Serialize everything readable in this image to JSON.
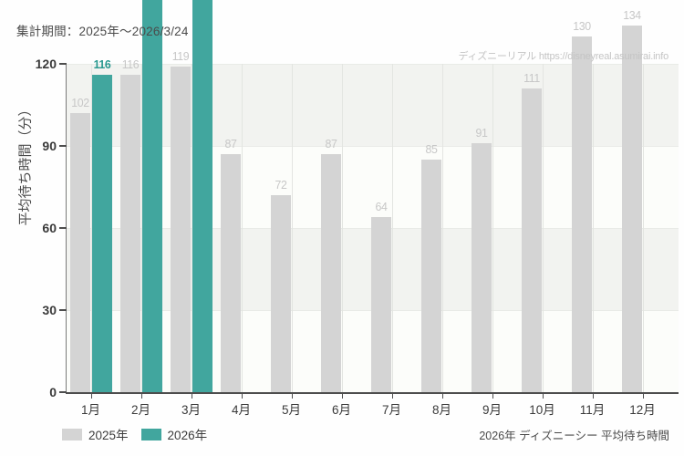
{
  "header": {
    "period_note": "集計期間：2025年～2026/3/24"
  },
  "watermark": "ディズニーリアル  https://disneyreal.asumirai.info",
  "footer": {
    "caption": "2026年 ディズニーシー 平均待ち時間"
  },
  "colors": {
    "series_2025": "#d4d4d4",
    "series_2026": "#41a69e",
    "band_shaded": "#f2f3f0",
    "band_plain": "#fcfdfa",
    "band_edge": "#e9ebe7",
    "gridline": "#e3e5e1",
    "axis": "#4d4d4d",
    "value_label_2025": "#c7c7c7",
    "value_label_2026": "#28988f"
  },
  "chart_data": {
    "type": "bar",
    "title": "",
    "ylabel": "平均待ち時間（分）",
    "xlabel": "",
    "categories": [
      "1月",
      "2月",
      "3月",
      "4月",
      "5月",
      "6月",
      "7月",
      "8月",
      "9月",
      "10月",
      "11月",
      "12月"
    ],
    "series": [
      {
        "name": "2025年",
        "color": "#d4d4d4",
        "label_color": "#c7c7c7",
        "values": [
          102,
          116,
          119,
          87,
          72,
          87,
          64,
          85,
          91,
          111,
          130,
          134
        ]
      },
      {
        "name": "2026年",
        "color": "#41a69e",
        "label_color": "#28988f",
        "values": [
          116,
          null,
          null,
          null,
          null,
          null,
          null,
          null,
          null,
          null,
          null,
          null
        ],
        "offscale_indices": [
          1,
          2
        ]
      }
    ],
    "yticks": [
      0,
      30,
      60,
      90,
      120
    ],
    "ylim": [
      0,
      120
    ],
    "grid": "alternating-horizontal-bands-and-vertical-gridlines",
    "legend_position": "bottom-left"
  }
}
